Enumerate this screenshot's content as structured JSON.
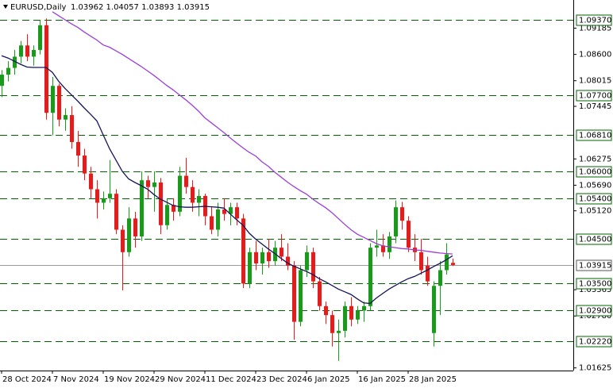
{
  "chart_data": {
    "type": "candlestick",
    "title": "EURUSD,Daily",
    "ohlc_text": "1.03962 1.04057 1.03893 1.03915",
    "categories": [
      "28 Oct 2024",
      null,
      null,
      null,
      null,
      null,
      null,
      null,
      "7 Nov 2024",
      null,
      null,
      null,
      null,
      null,
      null,
      null,
      "19 Nov 2024",
      null,
      null,
      null,
      null,
      null,
      null,
      null,
      "29 Nov 2024",
      null,
      null,
      null,
      null,
      null,
      null,
      null,
      "11 Dec 2024",
      null,
      null,
      null,
      null,
      null,
      null,
      null,
      "23 Dec 2024",
      null,
      null,
      null,
      null,
      null,
      null,
      null,
      "6 Jan 2025",
      null,
      null,
      null,
      null,
      null,
      null,
      null,
      "16 Jan 2025",
      null,
      null,
      null,
      null,
      null,
      null,
      null,
      "28 Jan 2025",
      null,
      null,
      null,
      null,
      null,
      null,
      null
    ],
    "open": [
      1.079,
      1.0815,
      1.083,
      1.0855,
      1.088,
      1.0855,
      1.087,
      1.0925,
      1.073,
      1.079,
      1.0715,
      1.0725,
      1.0665,
      1.0635,
      1.0595,
      1.056,
      1.053,
      1.054,
      1.055,
      1.047,
      1.042,
      1.0495,
      1.0455,
      1.058,
      1.0565,
      1.0575,
      1.048,
      1.0525,
      1.051,
      1.059,
      1.0565,
      1.053,
      1.0545,
      1.05,
      1.047,
      1.0515,
      1.0505,
      1.052,
      1.0495,
      1.035,
      1.042,
      1.0395,
      1.042,
      1.04,
      1.043,
      1.041,
      1.039,
      1.0265,
      1.038,
      1.042,
      1.0355,
      1.03,
      1.028,
      1.024,
      1.0245,
      1.03,
      1.027,
      1.029,
      1.03,
      1.043,
      1.0435,
      1.042,
      1.0455,
      1.052,
      1.049,
      1.043,
      1.042,
      1.039,
      1.024,
      1.0345,
      1.038,
      1.03962
    ],
    "high": [
      1.0825,
      1.0845,
      1.087,
      1.089,
      1.0905,
      1.088,
      1.0935,
      1.094,
      1.081,
      1.0795,
      1.074,
      1.0745,
      1.069,
      1.065,
      1.061,
      1.058,
      1.0555,
      1.0625,
      1.056,
      1.048,
      1.052,
      1.051,
      1.06,
      1.059,
      1.06,
      1.0585,
      1.054,
      1.054,
      1.061,
      1.063,
      1.058,
      1.056,
      1.055,
      1.052,
      1.053,
      1.054,
      1.053,
      1.053,
      1.0505,
      1.043,
      1.0445,
      1.043,
      1.045,
      1.0445,
      1.046,
      1.044,
      1.04,
      1.039,
      1.0435,
      1.043,
      1.0365,
      1.031,
      1.029,
      1.027,
      1.031,
      1.032,
      1.03,
      1.031,
      1.044,
      1.047,
      1.046,
      1.0465,
      1.0535,
      1.0532,
      1.05,
      1.046,
      1.045,
      1.041,
      1.0355,
      1.04,
      1.044,
      1.04057
    ],
    "low": [
      1.0765,
      1.08,
      1.0815,
      1.084,
      1.0845,
      1.0835,
      1.086,
      1.0715,
      1.068,
      1.07,
      1.069,
      1.065,
      1.061,
      1.058,
      1.054,
      1.0495,
      1.0515,
      1.053,
      1.046,
      1.0335,
      1.041,
      1.043,
      1.0445,
      1.054,
      1.051,
      1.046,
      1.047,
      1.049,
      1.05,
      1.055,
      1.051,
      1.05,
      1.048,
      1.046,
      1.0455,
      1.049,
      1.048,
      1.048,
      1.034,
      1.034,
      1.038,
      1.037,
      1.0385,
      1.039,
      1.04,
      1.038,
      1.0225,
      1.0255,
      1.0365,
      1.034,
      1.029,
      1.026,
      1.021,
      1.0178,
      1.023,
      1.0255,
      1.026,
      1.0265,
      1.029,
      1.041,
      1.041,
      1.0405,
      1.044,
      1.047,
      1.042,
      1.04,
      1.037,
      1.0345,
      1.021,
      1.028,
      1.037,
      1.03893
    ],
    "close": [
      1.0815,
      1.083,
      1.0855,
      1.088,
      1.0855,
      1.087,
      1.0925,
      1.073,
      1.079,
      1.0715,
      1.0725,
      1.0665,
      1.0635,
      1.0595,
      1.056,
      1.053,
      1.054,
      1.055,
      1.047,
      1.042,
      1.0495,
      1.0455,
      1.058,
      1.0565,
      1.0575,
      1.048,
      1.0525,
      1.051,
      1.059,
      1.0565,
      1.053,
      1.0545,
      1.05,
      1.047,
      1.0515,
      1.0505,
      1.052,
      1.0495,
      1.035,
      1.042,
      1.0395,
      1.042,
      1.04,
      1.043,
      1.041,
      1.039,
      1.0265,
      1.038,
      1.042,
      1.0355,
      1.03,
      1.028,
      1.024,
      1.0245,
      1.03,
      1.027,
      1.029,
      1.03,
      1.043,
      1.0435,
      1.042,
      1.0455,
      1.052,
      1.049,
      1.043,
      1.042,
      1.038,
      1.0355,
      1.0345,
      1.038,
      1.0415,
      1.03915
    ],
    "up_color": "#1a9a1a",
    "down_color": "#e51c1c",
    "lines": [
      {
        "color": "#14145a",
        "values": [
          1.0857,
          1.0852,
          1.0845,
          1.0838,
          1.0832,
          1.0831,
          1.0831,
          1.0831,
          1.082,
          1.08,
          1.0784,
          1.077,
          1.0756,
          1.0741,
          1.0727,
          1.0712,
          1.0681,
          1.065,
          1.0625,
          1.06,
          1.0583,
          1.0575,
          1.0568,
          1.056,
          1.0548,
          1.0538,
          1.0531,
          1.0524,
          1.0521,
          1.052,
          1.052,
          1.0521,
          1.0522,
          1.0521,
          1.052,
          1.0518,
          1.0505,
          1.0492,
          1.048,
          1.0462,
          1.0449,
          1.0438,
          1.0427,
          1.0417,
          1.0406,
          1.0396,
          1.0389,
          1.0383,
          1.0377,
          1.037,
          1.0361,
          1.0354,
          1.0346,
          1.0338,
          1.0332,
          1.0326,
          1.0316,
          1.0307,
          1.0306,
          1.0318,
          1.0328,
          1.0338,
          1.0346,
          1.0354,
          1.0361,
          1.0366,
          1.0373,
          1.038,
          1.0388,
          1.0395,
          1.0403,
          1.0412
        ]
      },
      {
        "color": "#9b3fd6",
        "values": [
          null,
          null,
          null,
          null,
          null,
          null,
          null,
          null,
          1.0955,
          1.0946,
          1.0937,
          1.0928,
          1.092,
          1.091,
          1.0901,
          1.0892,
          1.0881,
          1.0876,
          1.0868,
          1.086,
          1.0851,
          1.0842,
          1.0833,
          1.0823,
          1.0813,
          1.0802,
          1.0791,
          1.0781,
          1.077,
          1.0759,
          1.0747,
          1.0734,
          1.0719,
          1.0708,
          1.0697,
          1.0686,
          1.0674,
          1.0663,
          1.0652,
          1.0642,
          1.0634,
          1.0621,
          1.0611,
          1.0598,
          1.0587,
          1.0576,
          1.0566,
          1.0557,
          1.0549,
          1.0538,
          1.0528,
          1.0519,
          1.0508,
          1.0495,
          1.0482,
          1.047,
          1.046,
          1.0453,
          1.0446,
          1.0439,
          1.0434,
          1.0432,
          1.043,
          1.0428,
          1.0427,
          1.0425,
          1.0424,
          1.0422,
          1.042,
          1.0418,
          1.0417,
          1.0416
        ]
      }
    ],
    "levels": [
      {
        "value": 1.0937,
        "label": "1.09370"
      },
      {
        "value": 1.077,
        "label": "1.07700"
      },
      {
        "value": 1.0681,
        "label": "1.06810"
      },
      {
        "value": 1.06,
        "label": "1.06000"
      },
      {
        "value": 1.054,
        "label": "1.05400"
      },
      {
        "value": 1.045,
        "label": "1.04500"
      },
      {
        "value": 1.035,
        "label": "1.03500"
      },
      {
        "value": 1.029,
        "label": "1.02900"
      },
      {
        "value": 1.0222,
        "label": "1.02220"
      }
    ],
    "level_color": "#006400",
    "current_price": 1.03915,
    "ylim": [
      1.01566,
      1.09811
    ],
    "yticks": [
      1.09185,
      {
        "value": 1.086,
        "label": "1.08600"
      },
      1.08015,
      1.07445,
      1.06275,
      {
        "value": 1.0569,
        "label": "1.05690"
      },
      {
        "value": 1.0512,
        "label": "1.05120"
      },
      1.03365,
      {
        "value": 1.0278,
        "label": "1.02780"
      },
      1.01625
    ]
  }
}
